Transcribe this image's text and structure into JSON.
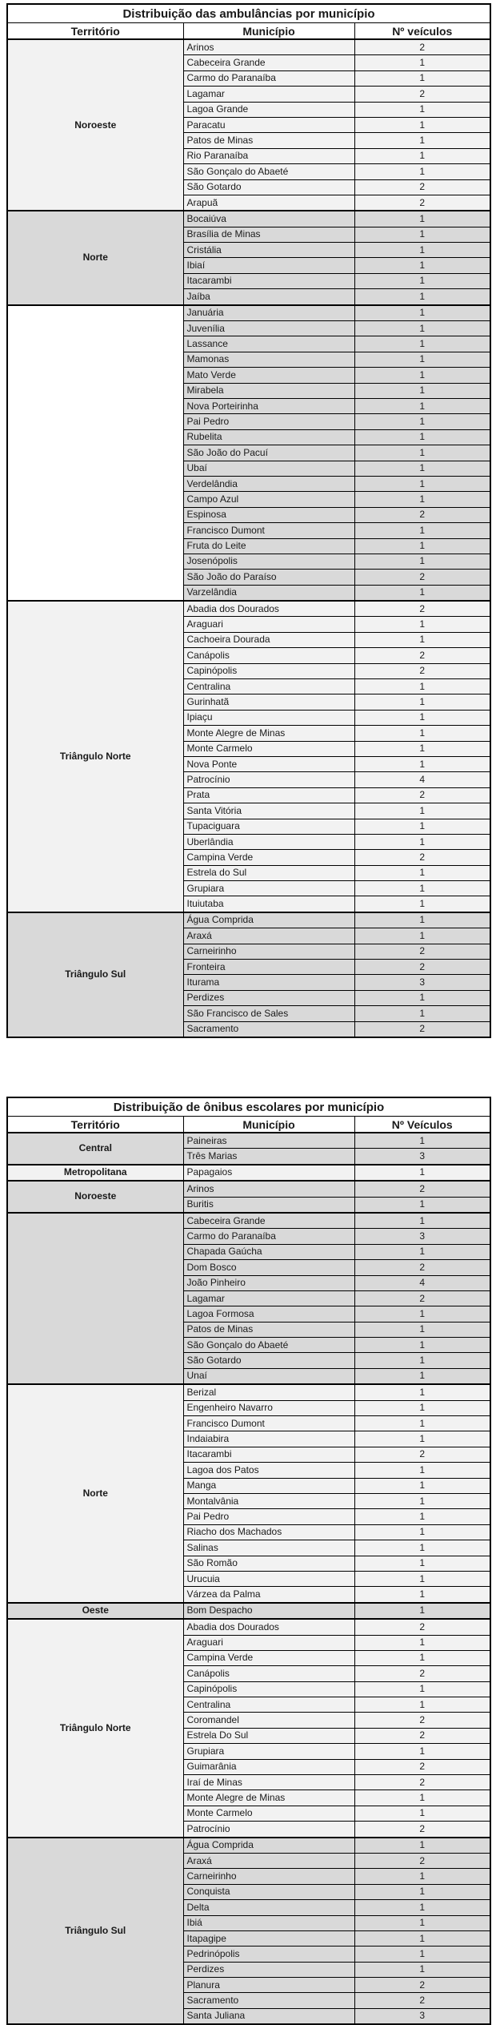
{
  "colors": {
    "dark": "#d9d9d9",
    "light": "#f2f2f2",
    "white": "#ffffff",
    "border": "#000000",
    "text": "#1a1a1a"
  },
  "tables": [
    {
      "title": "Distribuição das ambulâncias por município",
      "columns": [
        "Território",
        "Município",
        "Nº veículos"
      ],
      "groups": [
        {
          "territory": "Noroeste",
          "shade": "light",
          "rows": [
            [
              "Arinos",
              "2"
            ],
            [
              "Cabeceira Grande",
              "1"
            ],
            [
              "Carmo do Paranaíba",
              "1"
            ],
            [
              "Lagamar",
              "2"
            ],
            [
              "Lagoa Grande",
              "1"
            ],
            [
              "Paracatu",
              "1"
            ],
            [
              "Patos de Minas",
              "1"
            ],
            [
              "Rio Paranaíba",
              "1"
            ],
            [
              "São Gonçalo do Abaeté",
              "1"
            ],
            [
              "São Gotardo",
              "2"
            ],
            [
              "Arapuã",
              "2"
            ]
          ]
        },
        {
          "territory": "Norte",
          "shade": "dark",
          "rows": [
            [
              "Bocaiúva",
              "1"
            ],
            [
              "Brasília de Minas",
              "1"
            ],
            [
              "Cristália",
              "1"
            ],
            [
              "Ibiaí",
              "1"
            ],
            [
              "Itacarambi",
              "1"
            ],
            [
              "Jaíba",
              "1"
            ]
          ]
        },
        {
          "territory": "",
          "shade": "dark",
          "territory_shade": "white",
          "rows": [
            [
              "Januária",
              "1"
            ],
            [
              "Juvenília",
              "1"
            ],
            [
              "Lassance",
              "1"
            ],
            [
              "Mamonas",
              "1"
            ],
            [
              "Mato Verde",
              "1"
            ],
            [
              "Mirabela",
              "1"
            ],
            [
              "Nova Porteirinha",
              "1"
            ],
            [
              "Pai Pedro",
              "1"
            ],
            [
              "Rubelita",
              "1"
            ],
            [
              "São João do Pacuí",
              "1"
            ],
            [
              "Ubaí",
              "1"
            ],
            [
              "Verdelândia",
              "1"
            ],
            [
              "Campo Azul",
              "1"
            ],
            [
              "Espinosa",
              "2"
            ],
            [
              "Francisco Dumont",
              "1"
            ],
            [
              "Fruta do Leite",
              "1"
            ],
            [
              "Josenópolis",
              "1"
            ],
            [
              "São João do Paraíso",
              "2"
            ],
            [
              "Varzelândia",
              "1"
            ]
          ]
        },
        {
          "territory": "Triângulo Norte",
          "shade": "light",
          "rows": [
            [
              "Abadia dos Dourados",
              "2"
            ],
            [
              "Araguari",
              "1"
            ],
            [
              "Cachoeira Dourada",
              "1"
            ],
            [
              "Canápolis",
              "2"
            ],
            [
              "Capinópolis",
              "2"
            ],
            [
              "Centralina",
              "1"
            ],
            [
              "Gurinhatã",
              "1"
            ],
            [
              "Ipiaçu",
              "1"
            ],
            [
              "Monte Alegre de Minas",
              "1"
            ],
            [
              "Monte Carmelo",
              "1"
            ],
            [
              "Nova Ponte",
              "1"
            ],
            [
              "Patrocínio",
              "4"
            ],
            [
              "Prata",
              "2"
            ],
            [
              "Santa Vitória",
              "1"
            ],
            [
              "Tupaciguara",
              "1"
            ],
            [
              "Uberlândia",
              "1"
            ],
            [
              "Campina Verde",
              "2"
            ],
            [
              "Estrela do Sul",
              "1"
            ],
            [
              "Grupiara",
              "1"
            ],
            [
              "Ituiutaba",
              "1"
            ]
          ]
        },
        {
          "territory": "Triângulo Sul",
          "shade": "dark",
          "rows": [
            [
              "Água Comprida",
              "1"
            ],
            [
              "Araxá",
              "1"
            ],
            [
              "Carneirinho",
              "2"
            ],
            [
              "Fronteira",
              "2"
            ],
            [
              "Iturama",
              "3"
            ],
            [
              "Perdizes",
              "1"
            ],
            [
              "São Francisco de Sales",
              "1"
            ],
            [
              "Sacramento",
              "2"
            ]
          ]
        }
      ]
    },
    {
      "title": "Distribuição de ônibus escolares por município",
      "columns": [
        "Território",
        "Município",
        "Nº Veículos"
      ],
      "groups": [
        {
          "territory": "Central",
          "shade": "dark",
          "rows": [
            [
              "Paineiras",
              "1"
            ],
            [
              "Três Marias",
              "3"
            ]
          ]
        },
        {
          "territory": "Metropolitana",
          "shade": "light",
          "rows": [
            [
              "Papagaios",
              "1"
            ]
          ]
        },
        {
          "territory": "Noroeste",
          "shade": "dark",
          "rows": [
            [
              "Arinos",
              "2"
            ],
            [
              "Buritis",
              "1"
            ]
          ]
        },
        {
          "territory": "",
          "shade": "dark",
          "territory_shade": "dark",
          "rows": [
            [
              "Cabeceira Grande",
              "1"
            ],
            [
              "Carmo do Paranaíba",
              "3"
            ],
            [
              "Chapada Gaúcha",
              "1"
            ],
            [
              "Dom Bosco",
              "2"
            ],
            [
              "João Pinheiro",
              "4"
            ],
            [
              "Lagamar",
              "2"
            ],
            [
              "Lagoa Formosa",
              "1"
            ],
            [
              "Patos de Minas",
              "1"
            ],
            [
              "São Gonçalo do Abaeté",
              "1"
            ],
            [
              "São Gotardo",
              "1"
            ],
            [
              "Unaí",
              "1"
            ]
          ]
        },
        {
          "territory": "Norte",
          "shade": "light",
          "rows": [
            [
              "Berizal",
              "1"
            ],
            [
              "Engenheiro Navarro",
              "1"
            ],
            [
              "Francisco Dumont",
              "1"
            ],
            [
              "Indaiabira",
              "1"
            ],
            [
              "Itacarambi",
              "2"
            ],
            [
              "Lagoa dos Patos",
              "1"
            ],
            [
              "Manga",
              "1"
            ],
            [
              "Montalvânia",
              "1"
            ],
            [
              "Pai Pedro",
              "1"
            ],
            [
              "Riacho dos Machados",
              "1"
            ],
            [
              "Salinas",
              "1"
            ],
            [
              "São Romão",
              "1"
            ],
            [
              "Urucuia",
              "1"
            ],
            [
              "Várzea da Palma",
              "1"
            ]
          ]
        },
        {
          "territory": "Oeste",
          "shade": "dark",
          "rows": [
            [
              "Bom Despacho",
              "1"
            ]
          ]
        },
        {
          "territory": "Triângulo Norte",
          "shade": "light",
          "rows": [
            [
              "Abadia dos Dourados",
              "2"
            ],
            [
              "Araguari",
              "1"
            ],
            [
              "Campina Verde",
              "1"
            ],
            [
              "Canápolis",
              "2"
            ],
            [
              "Capinópolis",
              "1"
            ],
            [
              "Centralina",
              "1"
            ],
            [
              "Coromandel",
              "2"
            ],
            [
              "Estrela Do Sul",
              "2"
            ],
            [
              "Grupiara",
              "1"
            ],
            [
              "Guimarânia",
              "2"
            ],
            [
              "Iraí de Minas",
              "2"
            ],
            [
              "Monte Alegre de Minas",
              "1"
            ],
            [
              "Monte Carmelo",
              "1"
            ],
            [
              "Patrocínio",
              "2"
            ]
          ]
        },
        {
          "territory": "Triângulo Sul",
          "shade": "dark",
          "rows": [
            [
              "Água Comprida",
              "1"
            ],
            [
              "Araxá",
              "2"
            ],
            [
              "Carneirinho",
              "1"
            ],
            [
              "Conquista",
              "1"
            ],
            [
              "Delta",
              "1"
            ],
            [
              "Ibiá",
              "1"
            ],
            [
              "Itapagipe",
              "1"
            ],
            [
              "Pedrinópolis",
              "1"
            ],
            [
              "Perdizes",
              "1"
            ],
            [
              "Planura",
              "2"
            ],
            [
              "Sacramento",
              "2"
            ],
            [
              "Santa Juliana",
              "3"
            ]
          ]
        }
      ]
    }
  ]
}
